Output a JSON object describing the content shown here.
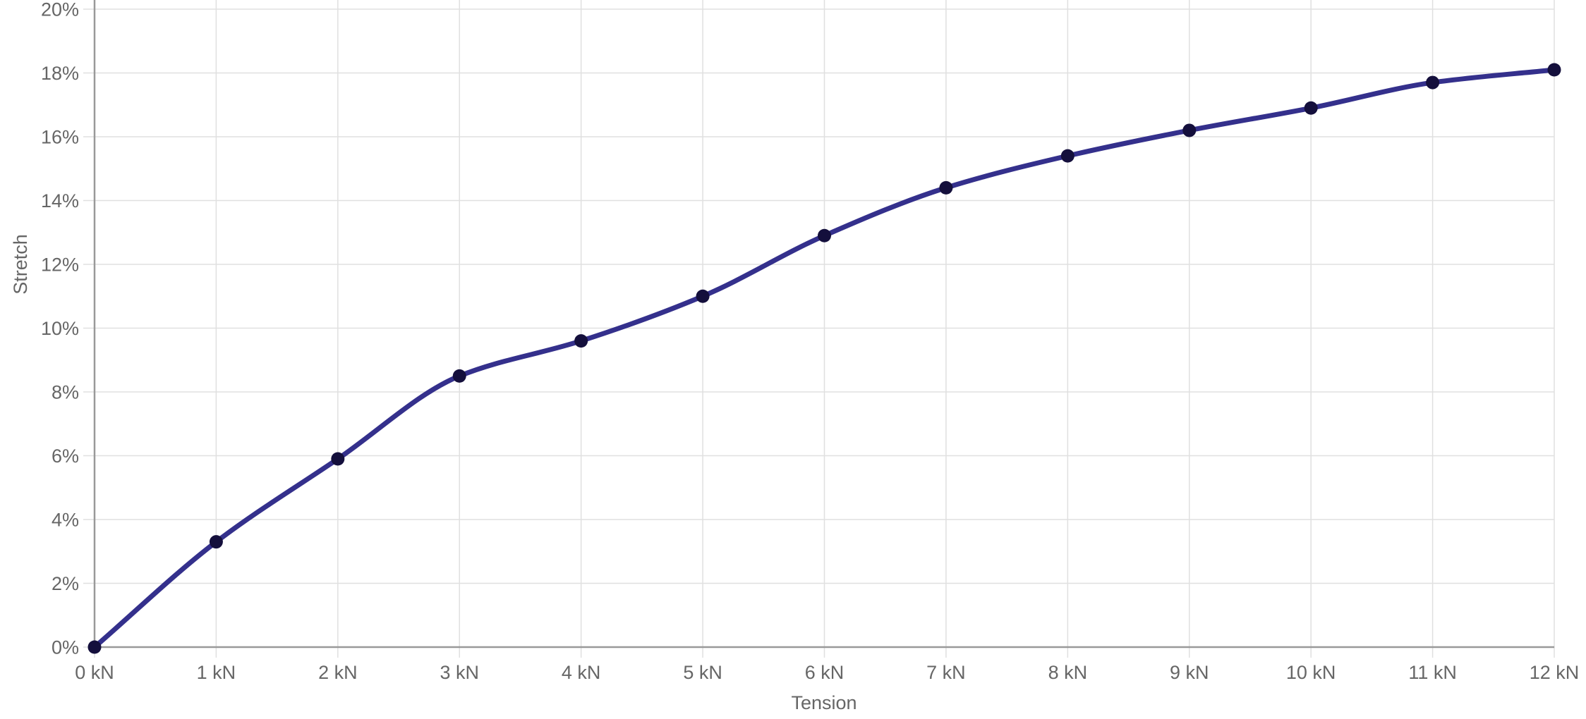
{
  "chart_data": {
    "type": "line",
    "title": "",
    "xlabel": "Tension",
    "ylabel": "Stretch",
    "x": [
      0,
      1,
      2,
      3,
      4,
      5,
      6,
      7,
      8,
      9,
      10,
      11,
      12
    ],
    "x_tick_labels": [
      "0 kN",
      "1 kN",
      "2 kN",
      "3 kN",
      "4 kN",
      "5 kN",
      "6 kN",
      "7 kN",
      "8 kN",
      "9 kN",
      "10 kN",
      "11 kN",
      "12 kN"
    ],
    "values": [
      0,
      3.3,
      5.9,
      8.5,
      9.6,
      11.0,
      12.9,
      14.4,
      15.4,
      16.2,
      16.9,
      17.7,
      18.1
    ],
    "y_ticks": [
      0,
      2,
      4,
      6,
      8,
      10,
      12,
      14,
      16,
      18,
      20
    ],
    "y_tick_labels": [
      "0%",
      "2%",
      "4%",
      "6%",
      "8%",
      "10%",
      "12%",
      "14%",
      "16%",
      "18%",
      "20%"
    ],
    "xlim": [
      0,
      12
    ],
    "ylim": [
      0,
      20
    ],
    "grid": true,
    "legend": false,
    "colors": {
      "line": "#34308c",
      "point": "#140f3c",
      "grid": "#e0e0e0",
      "axis": "#999999",
      "tick_text": "#666666",
      "axis_label_text": "#666666",
      "background": "#ffffff"
    }
  }
}
